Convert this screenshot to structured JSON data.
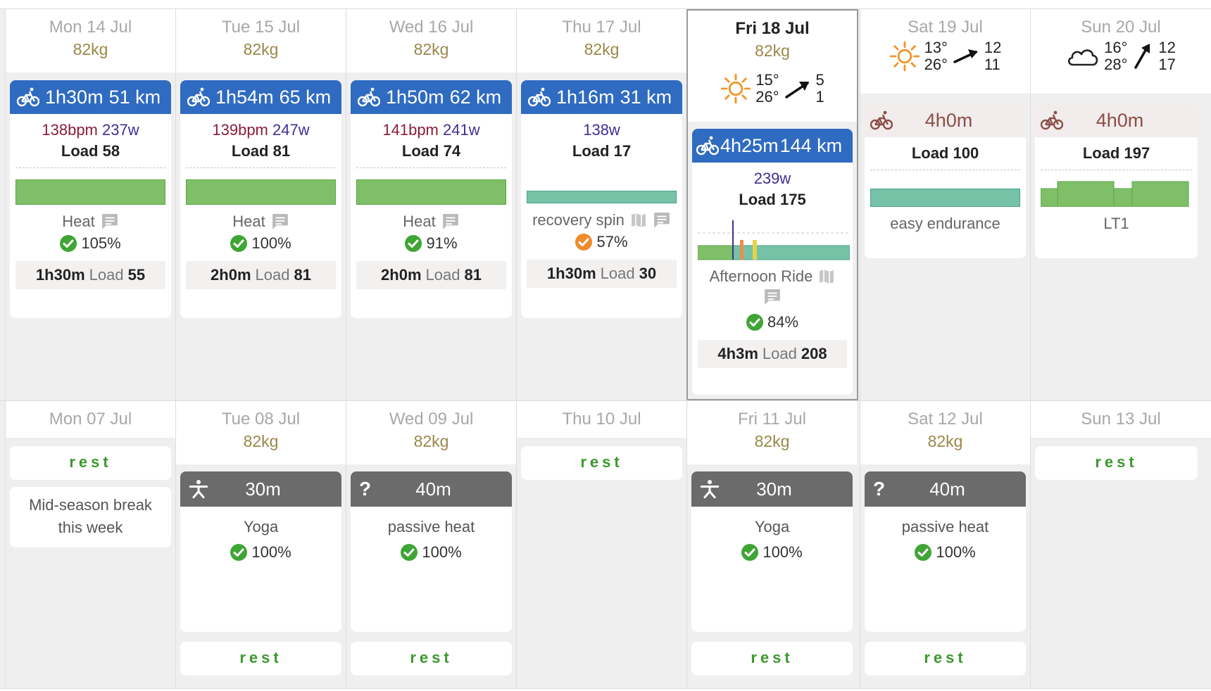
{
  "week1": {
    "mon": {
      "date": "Mon 14 Jul",
      "weight": "82kg",
      "activity": {
        "duration": "1h30m",
        "distance": "51 km",
        "bpm": "138bpm",
        "watts": "237w",
        "load": "Load 58"
      },
      "planned": {
        "name": "Heat",
        "compliance": "105%",
        "duration": "1h30m",
        "load_label": "Load",
        "load_value": "55"
      }
    },
    "tue": {
      "date": "Tue 15 Jul",
      "weight": "82kg",
      "activity": {
        "duration": "1h54m",
        "distance": "65 km",
        "bpm": "139bpm",
        "watts": "247w",
        "load": "Load 81"
      },
      "planned": {
        "name": "Heat",
        "compliance": "100%",
        "duration": "2h0m",
        "load_label": "Load",
        "load_value": "81"
      }
    },
    "wed": {
      "date": "Wed 16 Jul",
      "weight": "82kg",
      "activity": {
        "duration": "1h50m",
        "distance": "62 km",
        "bpm": "141bpm",
        "watts": "241w",
        "load": "Load 74"
      },
      "planned": {
        "name": "Heat",
        "compliance": "91%",
        "duration": "2h0m",
        "load_label": "Load",
        "load_value": "81"
      }
    },
    "thu": {
      "date": "Thu 17 Jul",
      "weight": "82kg",
      "activity": {
        "duration": "1h16m",
        "distance": "31 km",
        "watts": "138w",
        "load": "Load 17"
      },
      "planned": {
        "name": "recovery spin",
        "compliance": "57%",
        "duration": "1h30m",
        "load_label": "Load",
        "load_value": "30"
      }
    },
    "fri": {
      "date": "Fri 18 Jul",
      "weight": "82kg",
      "weather": {
        "temp_low": "15°",
        "temp_high": "26°",
        "wind_a": "5",
        "wind_b": "1"
      },
      "activity": {
        "duration": "4h25m",
        "distance": "144 km",
        "watts": "239w",
        "load": "Load 175"
      },
      "planned": {
        "name": "Afternoon Ride",
        "compliance": "84%",
        "duration": "4h3m",
        "load_label": "Load",
        "load_value": "208"
      }
    },
    "sat": {
      "date": "Sat 19 Jul",
      "weather": {
        "temp_low": "13°",
        "temp_high": "26°",
        "wind_a": "12",
        "wind_b": "11"
      },
      "planned": {
        "duration": "4h0m",
        "load": "Load 100",
        "name": "easy endurance"
      }
    },
    "sun": {
      "date": "Sun 20 Jul",
      "weather": {
        "temp_low": "16°",
        "temp_high": "28°",
        "wind_a": "12",
        "wind_b": "17"
      },
      "planned": {
        "duration": "4h0m",
        "load": "Load 197",
        "name": "LT1"
      }
    }
  },
  "week2": {
    "mon": {
      "date": "Mon 07 Jul",
      "rest": "rest",
      "note": "Mid-season break this week"
    },
    "tue": {
      "date": "Tue 08 Jul",
      "weight": "82kg",
      "workout": {
        "duration": "30m",
        "name": "Yoga",
        "compliance": "100%"
      },
      "rest": "rest"
    },
    "wed": {
      "date": "Wed 09 Jul",
      "weight": "82kg",
      "workout": {
        "icon_glyph": "?",
        "duration": "40m",
        "name": "passive heat",
        "compliance": "100%"
      },
      "rest": "rest"
    },
    "thu": {
      "date": "Thu 10 Jul",
      "rest": "rest"
    },
    "fri": {
      "date": "Fri 11 Jul",
      "weight": "82kg",
      "workout": {
        "duration": "30m",
        "name": "Yoga",
        "compliance": "100%"
      },
      "rest": "rest"
    },
    "sat": {
      "date": "Sat 12 Jul",
      "weight": "82kg",
      "workout": {
        "icon_glyph": "?",
        "duration": "40m",
        "name": "passive heat",
        "compliance": "100%"
      },
      "rest": "rest"
    },
    "sun": {
      "date": "Sun 13 Jul",
      "rest": "rest"
    }
  },
  "colors": {
    "activity_header": "#2f6bc1",
    "planned_header": "#f2ecec",
    "other_header": "#6b6b6b",
    "bar_green": "#7fbf68",
    "bar_teal": "#76c2a6",
    "check_green": "#3fa535",
    "check_orange": "#f08a2c",
    "rest_green": "#3b9a2c"
  }
}
